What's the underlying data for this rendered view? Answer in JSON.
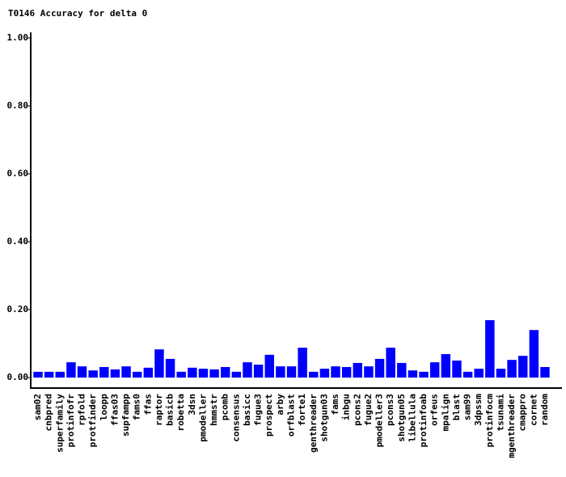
{
  "chart_data": {
    "type": "bar",
    "title": "T0146 Accuracy for delta 0",
    "categories": [
      "sam02",
      "cnbpred",
      "superfamily",
      "protinfofr",
      "rpfold",
      "protfinder",
      "loopp",
      "ffas03",
      "supfampp",
      "fams0",
      "ffas",
      "raptor",
      "basicb",
      "robetta",
      "3dsn",
      "pmodeller",
      "hmmstr",
      "pcomb",
      "consensus",
      "basicc",
      "fugue3",
      "prospect",
      "arby",
      "orfblast",
      "forte1",
      "genthreader",
      "shotgun03",
      "fams",
      "inbgu",
      "pcons2",
      "fugue2",
      "pmodeller3",
      "pcons3",
      "shotgun05",
      "libellula",
      "protinfoab",
      "orfeus",
      "mpalign",
      "blast",
      "sam99",
      "3dpssm",
      "protinfocm",
      "tsunami",
      "mgenthreader",
      "cmappro",
      "cornet",
      "random"
    ],
    "values": [
      0.017,
      0.017,
      0.017,
      0.045,
      0.033,
      0.021,
      0.031,
      0.024,
      0.033,
      0.017,
      0.029,
      0.083,
      0.055,
      0.017,
      0.029,
      0.026,
      0.024,
      0.031,
      0.017,
      0.045,
      0.038,
      0.067,
      0.033,
      0.033,
      0.088,
      0.017,
      0.026,
      0.033,
      0.031,
      0.043,
      0.033,
      0.055,
      0.088,
      0.043,
      0.021,
      0.017,
      0.045,
      0.069,
      0.05,
      0.017,
      0.026,
      0.169,
      0.026,
      0.052,
      0.064,
      0.14,
      0.031
    ],
    "color": "#0000ff",
    "ylim": [
      -0.03,
      1.0
    ],
    "yticks": [
      {
        "value": 0,
        "label": "0.00"
      },
      {
        "value": 0.2,
        "label": "0.20"
      },
      {
        "value": 0.4,
        "label": "0.40"
      },
      {
        "value": 0.6,
        "label": "0.60"
      },
      {
        "value": 0.8,
        "label": "0.80"
      },
      {
        "value": 1,
        "label": "1.00"
      }
    ]
  }
}
